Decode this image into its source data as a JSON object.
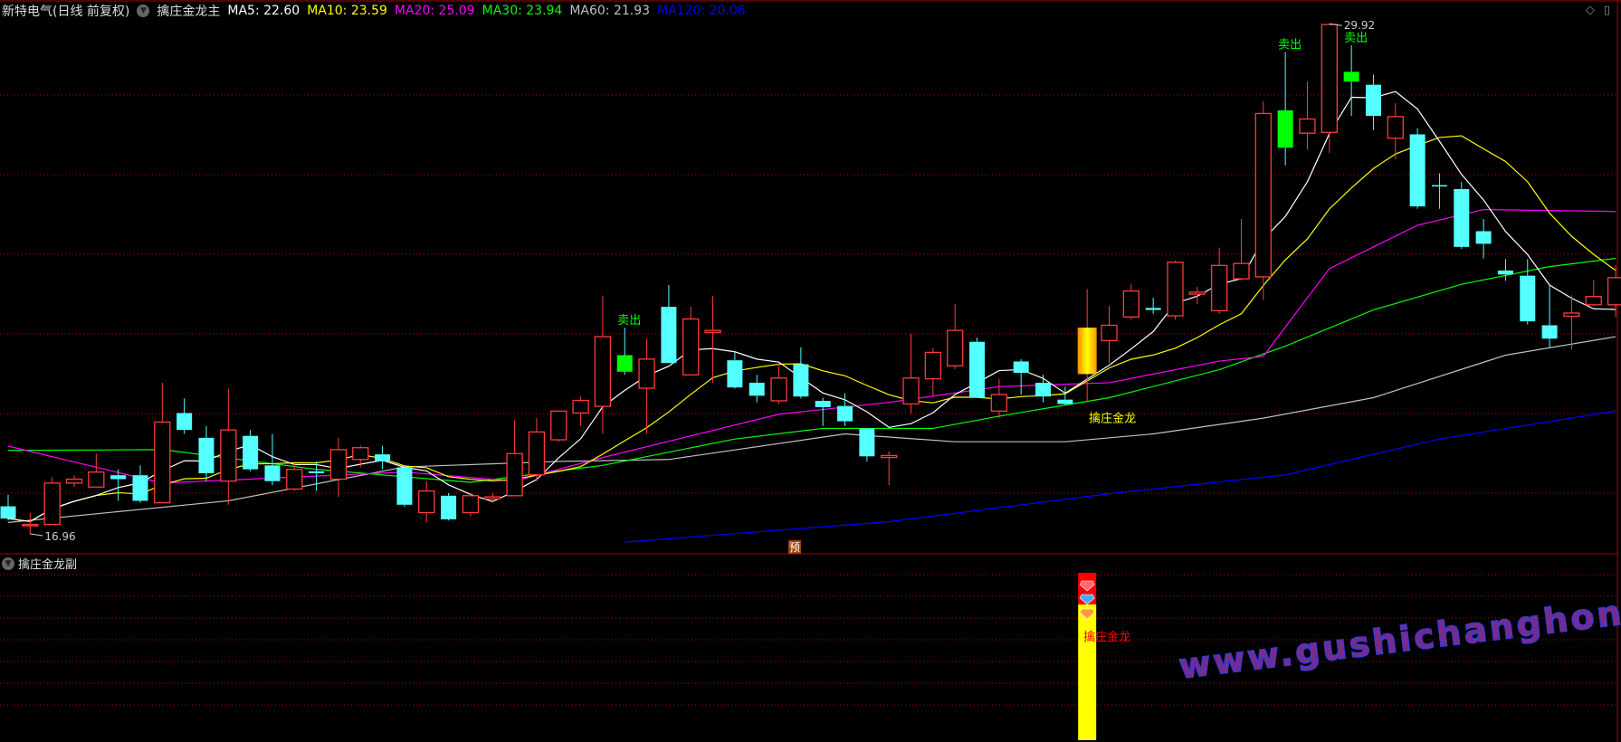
{
  "header": {
    "stock": "新特电气(日线 前复权)",
    "indicator": "擒庄金龙主",
    "ma": [
      {
        "label": "MA5: 22.60",
        "color": "#ffffff"
      },
      {
        "label": "MA10: 23.59",
        "color": "#ffff00"
      },
      {
        "label": "MA20: 25.09",
        "color": "#ff00ff"
      },
      {
        "label": "MA30: 23.94",
        "color": "#00ff00"
      },
      {
        "label": "MA60: 21.93",
        "color": "#c0c0c0"
      },
      {
        "label": "MA120: 20.06",
        "color": "#0000ff"
      }
    ]
  },
  "sub_panel": {
    "title": "擒庄金龙副",
    "signal_label": "擒庄金龙"
  },
  "annotations": {
    "low_label": "16.96",
    "high_label": "29.92",
    "sell_label": "卖出",
    "signal_label": "擒庄金龙",
    "forecast_badge": "预"
  },
  "icons": [
    "diamond-icon",
    "panel-toggle-icon"
  ],
  "watermark": "www.gushichanghong.com",
  "colors": {
    "up": "#ff3b3b",
    "down": "#54ffff",
    "sell": "#00ff00",
    "grid": "#b00000",
    "signal": "#ffcc00"
  },
  "chart_data": {
    "type": "candlestick",
    "price_range": [
      16.45,
      30.5
    ],
    "low": 16.96,
    "high": 29.92,
    "sell_signals": [
      28,
      58,
      61
    ],
    "gold_signal": 49,
    "candles": [
      [
        17.66,
        17.35,
        17.95,
        17.3
      ],
      [
        17.2,
        17.2,
        17.5,
        16.96
      ],
      [
        17.2,
        18.25,
        18.4,
        17.2
      ],
      [
        18.25,
        18.35,
        18.45,
        18.15
      ],
      [
        18.15,
        18.53,
        19.0,
        18.15
      ],
      [
        18.45,
        18.35,
        18.6,
        17.8
      ],
      [
        18.45,
        17.8,
        18.7,
        17.75
      ],
      [
        17.75,
        19.8,
        20.8,
        17.75
      ],
      [
        20.03,
        19.6,
        20.4,
        19.5
      ],
      [
        19.4,
        18.5,
        19.7,
        18.3
      ],
      [
        18.3,
        19.6,
        20.65,
        17.7
      ],
      [
        19.45,
        18.6,
        19.6,
        18.55
      ],
      [
        18.7,
        18.3,
        19.5,
        18.2
      ],
      [
        18.1,
        18.6,
        18.75,
        18.05
      ],
      [
        18.55,
        18.5,
        18.8,
        18.05
      ],
      [
        18.35,
        19.1,
        19.4,
        17.9
      ],
      [
        18.85,
        19.15,
        19.2,
        18.65
      ],
      [
        18.98,
        18.8,
        19.2,
        18.6
      ],
      [
        18.65,
        17.7,
        18.7,
        17.65
      ],
      [
        17.5,
        18.05,
        18.3,
        17.25
      ],
      [
        17.93,
        17.33,
        18.0,
        17.3
      ],
      [
        17.5,
        17.93,
        18.0,
        17.4
      ],
      [
        17.85,
        17.9,
        18.0,
        17.75
      ],
      [
        17.93,
        19.0,
        19.85,
        17.93
      ],
      [
        18.46,
        19.55,
        19.9,
        18.3
      ],
      [
        19.35,
        20.08,
        20.1,
        19.3
      ],
      [
        20.03,
        20.35,
        20.45,
        19.7
      ],
      [
        20.2,
        21.97,
        23.0,
        19.5
      ],
      [
        21.5,
        21.08,
        22.2,
        21.0
      ],
      [
        20.66,
        21.4,
        21.92,
        19.5
      ],
      [
        22.73,
        21.3,
        23.28,
        21.3
      ],
      [
        21.0,
        22.42,
        22.73,
        21.0
      ],
      [
        22.08,
        22.13,
        23.0,
        20.8
      ],
      [
        21.37,
        20.68,
        21.6,
        20.65
      ],
      [
        20.8,
        20.47,
        21.0,
        20.3
      ],
      [
        20.34,
        20.92,
        21.3,
        20.26
      ],
      [
        21.27,
        20.45,
        21.7,
        20.4
      ],
      [
        20.34,
        20.18,
        20.42,
        19.7
      ],
      [
        20.21,
        19.82,
        20.53,
        19.7
      ],
      [
        19.64,
        18.93,
        19.64,
        18.8
      ],
      [
        18.9,
        18.95,
        19.06,
        18.2
      ],
      [
        20.26,
        20.92,
        22.05,
        20.0
      ],
      [
        20.9,
        21.57,
        21.68,
        20.47
      ],
      [
        21.23,
        22.13,
        22.8,
        21.15
      ],
      [
        21.84,
        20.42,
        21.95,
        20.42
      ],
      [
        20.08,
        20.5,
        20.9,
        19.9
      ],
      [
        21.34,
        21.05,
        21.4,
        20.5
      ],
      [
        20.8,
        20.45,
        21.0,
        20.3
      ],
      [
        20.37,
        20.26,
        20.7,
        20.23
      ],
      [
        21.02,
        22.2,
        23.18,
        20.3
      ],
      [
        21.87,
        22.26,
        22.75,
        21.3
      ],
      [
        22.47,
        23.13,
        23.3,
        22.4
      ],
      [
        22.7,
        22.65,
        22.96,
        22.55
      ],
      [
        22.5,
        23.86,
        23.9,
        22.4
      ],
      [
        23.05,
        23.1,
        23.23,
        22.8
      ],
      [
        22.63,
        23.78,
        24.23,
        22.55
      ],
      [
        23.44,
        23.83,
        24.96,
        23.4
      ],
      [
        23.49,
        27.64,
        27.95,
        22.9
      ],
      [
        27.72,
        26.77,
        29.2,
        26.32
      ],
      [
        27.14,
        27.5,
        28.45,
        26.72
      ],
      [
        27.16,
        29.9,
        29.92,
        26.64
      ],
      [
        28.7,
        28.45,
        29.37,
        27.58
      ],
      [
        28.37,
        27.58,
        28.63,
        27.22
      ],
      [
        27.01,
        27.56,
        27.9,
        26.48
      ],
      [
        27.11,
        25.28,
        27.27,
        25.22
      ],
      [
        25.82,
        25.8,
        26.12,
        25.22
      ],
      [
        25.72,
        24.25,
        25.9,
        24.2
      ],
      [
        24.65,
        24.33,
        24.96,
        23.96
      ],
      [
        23.65,
        23.55,
        23.94,
        23.39
      ],
      [
        23.52,
        22.36,
        23.94,
        22.28
      ],
      [
        22.26,
        21.92,
        23.31,
        21.68
      ],
      [
        22.49,
        22.57,
        23.02,
        21.65
      ],
      [
        22.78,
        22.99,
        23.41,
        22.75
      ],
      [
        22.78,
        23.47,
        23.78,
        22.47
      ]
    ],
    "ma_lines": {
      "MA20": [
        [
          0,
          19.19
        ],
        [
          7,
          18.25
        ],
        [
          18,
          18.53
        ],
        [
          23,
          18.3
        ],
        [
          27,
          18.9
        ],
        [
          35,
          20.0
        ],
        [
          40,
          20.3
        ],
        [
          45,
          20.7
        ],
        [
          50,
          20.8
        ],
        [
          55,
          21.35
        ],
        [
          57,
          21.47
        ],
        [
          60,
          23.7
        ],
        [
          64,
          24.8
        ],
        [
          67,
          25.2
        ],
        [
          73,
          25.15
        ]
      ],
      "MA30": [
        [
          0,
          19.08
        ],
        [
          7,
          19.1
        ],
        [
          14,
          18.6
        ],
        [
          21,
          18.27
        ],
        [
          27,
          18.7
        ],
        [
          33,
          19.37
        ],
        [
          37,
          19.64
        ],
        [
          42,
          19.64
        ],
        [
          45,
          19.95
        ],
        [
          50,
          20.42
        ],
        [
          55,
          21.13
        ],
        [
          58,
          21.73
        ],
        [
          62,
          22.65
        ],
        [
          66,
          23.3
        ],
        [
          70,
          23.75
        ],
        [
          73,
          23.96
        ]
      ],
      "MA60": [
        [
          0,
          17.25
        ],
        [
          10,
          17.8
        ],
        [
          18,
          18.66
        ],
        [
          25,
          18.8
        ],
        [
          30,
          18.85
        ],
        [
          38,
          19.5
        ],
        [
          43,
          19.3
        ],
        [
          48,
          19.3
        ],
        [
          52,
          19.5
        ],
        [
          57,
          19.9
        ],
        [
          62,
          20.42
        ],
        [
          68,
          21.5
        ],
        [
          73,
          21.97
        ]
      ],
      "MA120": [
        [
          28,
          16.75
        ],
        [
          40,
          17.27
        ],
        [
          50,
          17.98
        ],
        [
          58,
          18.46
        ],
        [
          65,
          19.37
        ],
        [
          73,
          20.08
        ]
      ]
    }
  }
}
